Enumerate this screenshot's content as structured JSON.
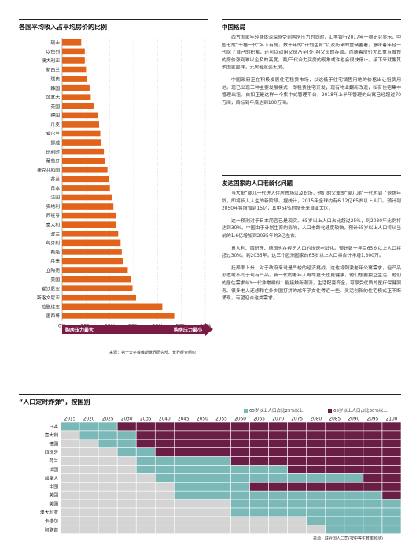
{
  "left_section": {
    "title": "各国平均收入占平均房价的比例",
    "pressure_high": "购房压力最大",
    "pressure_low": "购房压力最小",
    "source": "来源：第一太平戴维斯世界研究部、世界经合组织"
  },
  "chart_data": [
    {
      "type": "bar",
      "orientation": "horizontal",
      "categories": [
        "瑞士",
        "以色列",
        "澳大利亚",
        "新西兰",
        "瑞典",
        "韩国",
        "加拿大",
        "英国",
        "德国",
        "丹麦",
        "爱尔兰",
        "挪威",
        "比利时",
        "葡萄牙",
        "捷克共和国",
        "芬兰",
        "日本",
        "法国",
        "奥地利",
        "西班牙",
        "意大利",
        "波兰",
        "匈牙利",
        "希腊",
        "丹麦",
        "立陶宛",
        "美国",
        "爱沙尼亚",
        "斯洛文尼亚",
        "拉脱维亚",
        "墨西哥"
      ],
      "values": [
        8,
        9.5,
        9.5,
        10,
        10.5,
        11.5,
        12,
        13.5,
        15,
        15.5,
        16,
        16.5,
        17.5,
        18,
        19,
        19.5,
        20,
        21,
        21.5,
        22.5,
        22.5,
        23.5,
        24.5,
        25,
        25.5,
        27.5,
        29,
        29.5,
        31,
        42,
        47
      ],
      "xlim": [
        0,
        60
      ],
      "xticks": [
        "0%",
        "10%",
        "20%",
        "30%",
        "40%",
        "50%",
        "60%"
      ],
      "color": "#e2641b",
      "grid": true
    },
    {
      "type": "heatmap",
      "title": "“人口定时炸弹”，按国别",
      "years": [
        "2015",
        "2020",
        "2025",
        "2030",
        "2035",
        "2040",
        "2045",
        "2050",
        "2055",
        "2060",
        "2065",
        "2070",
        "2075",
        "2080",
        "2085",
        "2090",
        "2095",
        "2100"
      ],
      "legend": [
        {
          "label": "65岁以上人口占比25%以上",
          "color": "#7ab9b8"
        },
        {
          "label": "65岁以上人口占比30%以上",
          "color": "#6b1e45"
        }
      ],
      "rows": [
        {
          "country": "日本",
          "pct25_from": "2015",
          "pct30_from": "2030"
        },
        {
          "country": "意大利",
          "pct25_from": "2020",
          "pct30_from": "2035"
        },
        {
          "country": "德国",
          "pct25_from": "2025",
          "pct30_from": "2035"
        },
        {
          "country": "西班牙",
          "pct25_from": "2030",
          "pct30_from": "2040"
        },
        {
          "country": "荷兰",
          "pct25_from": "2035",
          "pct30_from": "2060"
        },
        {
          "country": "法国",
          "pct25_from": "2035",
          "pct30_from": "2075"
        },
        {
          "country": "加拿大",
          "pct25_from": "2040",
          "pct30_from": "2095"
        },
        {
          "country": "中国",
          "pct25_from": "2045",
          "pct30_from": "2065"
        },
        {
          "country": "英国",
          "pct25_from": "2045",
          "pct30_from": "2100"
        },
        {
          "country": "美国",
          "pct25_from": "2060",
          "pct30_from": null
        },
        {
          "country": "澳大利亚",
          "pct25_from": "2060",
          "pct30_from": null
        },
        {
          "country": "卡塔尔",
          "pct25_from": "2080",
          "pct30_from": null
        },
        {
          "country": "阿联酋",
          "pct25_from": "2085",
          "pct30_from": null
        }
      ]
    }
  ],
  "article": {
    "heading1": "中国格局",
    "p1": "西方国家年轻群体深深感受到购房压力的同时，汇丰银行2017年一项研究显示，中国七成“千禧一代”名下有房。数十年的“计划生育”以及历来的重储蓄看，意味着年轻一代除了自己的积蓄，还可以动用父母乃至(外)祖父母的存款。而随着房价尤其重点城市的房价涨到难以企及的高度，两/三代合力买房的现象或许也会很快停止。接下来就像其他国家那样，无房者永远无房。",
    "p2": "中国政府正在积极发展住宅租赁市场，以这低于住宅销售用地的价格出让租赁用地。现已出现三种主要发展模式，即租赁住宅开发，现有物业翻新改造，私有住宅集中管理出租。自如正是这样一个集中式管理平台，2018年上半年管理的公寓已经超过70万间，目标到年底达到100万间。",
    "heading2": "发达国家的人口老龄化问题",
    "p3": "当大批“婴儿一代进入住房市场以及职场，他们的父辈即“婴儿潮”一代也到了退休年龄，即将步入人生的新阶段。据统计，2015年全球约有6.12亿65岁以上人口。预计到2050年将增加到15亿，其中64%的增长来自亚太区。",
    "p4": "这一预测对于日本而言已是现实。65岁以上人口占比超过25%，到2030年比例将达到30%。中国由于计划生育的影响，人口老龄化速度较快，预计65岁以上人口将从当前的1.6亿增加到2035年的3亿左右。",
    "p5": "意大利、西班牙、德国也在经历人口的快速老龄化。预计数十年后65岁以上人口将超过30%。到2035年，这三个欧洲国家的65岁以上人口将合计净增1,300万。",
    "p6": "抚养率上升，对于政府来说是严峻的经济挑战。这也将刺激老年公寓需求，但产品形态或不同于现有产品。新一代的老年人寿命更长也更健康，他们想要独立生活。他们的居住需求与Y一代非常相似：能接触新潮流，生活配套齐全，可享受优质的医疗保健服务。很多老人还想和在外乡国打拼的成年子女住得近一些。灵活创新的住宅模式正不断涌现，有望迎合这类需求。"
  },
  "timeline_source": "来源：联合国人口司(按中等生育率预测)"
}
